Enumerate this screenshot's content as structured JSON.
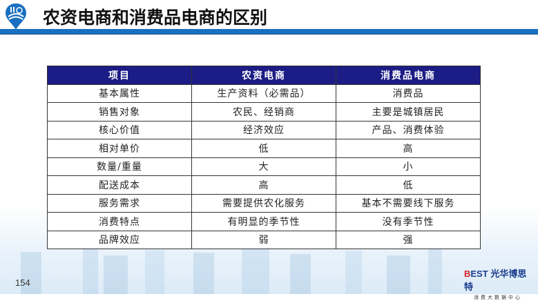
{
  "header": {
    "title": "农资电商和消费品电商的区别",
    "accent_color": "#1a6fc0"
  },
  "table": {
    "header_color": "#1c1c86",
    "columns": [
      "项目",
      "农资电商",
      "消费品电商"
    ],
    "rows": [
      [
        "基本属性",
        "生产资料（必需品）",
        "消费品"
      ],
      [
        "销售对象",
        "农民、经销商",
        "主要是城镇居民"
      ],
      [
        "核心价值",
        "经济效应",
        "产品、消费体验"
      ],
      [
        "相对单价",
        "低",
        "高"
      ],
      [
        "数量/重量",
        "大",
        "小"
      ],
      [
        "配送成本",
        "高",
        "低"
      ],
      [
        "服务需求",
        "需要提供农化服务",
        "基本不需要线下服务"
      ],
      [
        "消费特点",
        "有明显的季节性",
        "没有季节性"
      ],
      [
        "品牌效应",
        "弱",
        "强"
      ]
    ]
  },
  "footer": {
    "page_number": "154",
    "brand_prefix": "B",
    "brand_est": "EST",
    "brand_name": "光华博思特",
    "brand_sub": "消费大数据中心"
  }
}
